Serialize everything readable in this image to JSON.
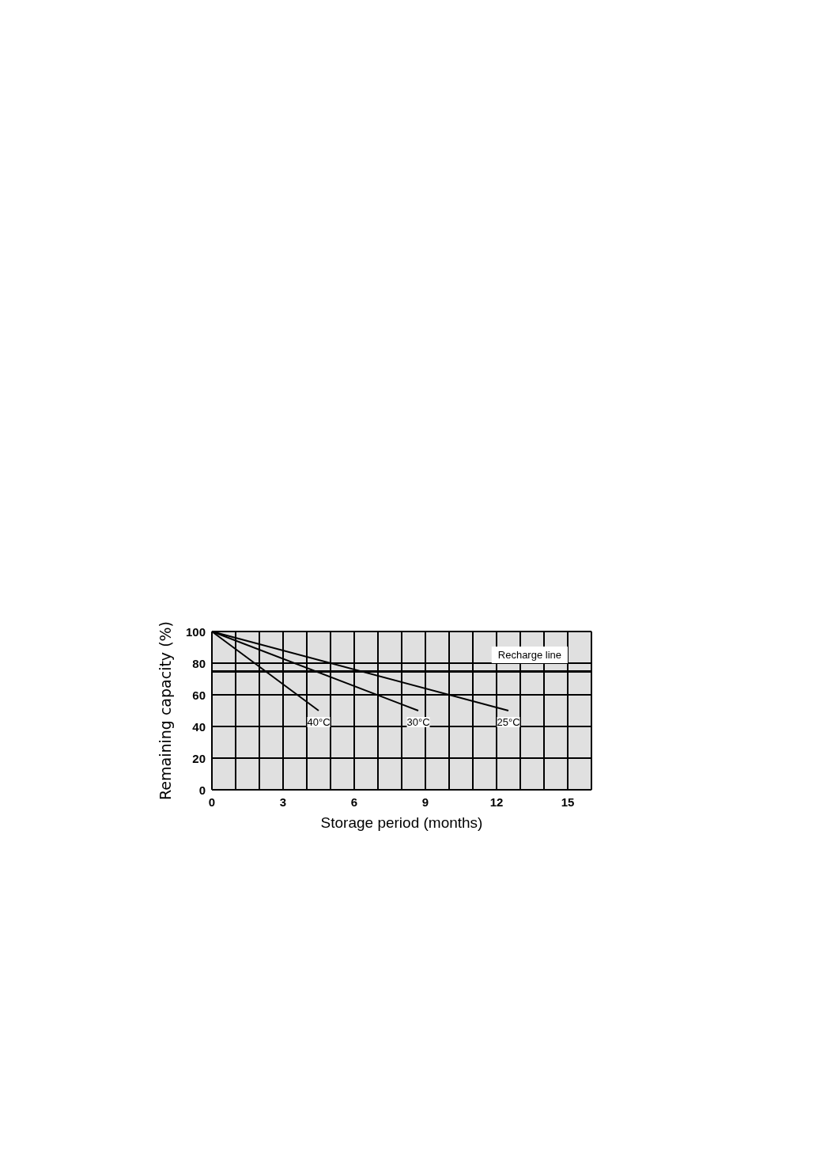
{
  "chart_data": {
    "type": "line",
    "xlabel": "Storage period (months)",
    "ylabel": "Remaining capacity (%)",
    "series": [
      {
        "name": "40°C",
        "color": "#000000",
        "x": [
          0,
          4.5
        ],
        "values": [
          100,
          50
        ]
      },
      {
        "name": "30°C",
        "color": "#000000",
        "x": [
          0,
          8.7
        ],
        "values": [
          100,
          50
        ]
      },
      {
        "name": "25°C",
        "color": "#000000",
        "x": [
          0,
          12.5
        ],
        "values": [
          100,
          50
        ]
      }
    ],
    "xlim": [
      0,
      16
    ],
    "xticks": [
      0,
      {
        "value": 1,
        "label": null
      },
      {
        "value": 2,
        "label": null
      },
      3,
      {
        "value": 4,
        "label": null
      },
      {
        "value": 5,
        "label": null
      },
      6,
      {
        "value": 7,
        "label": null
      },
      {
        "value": 8,
        "label": null
      },
      9,
      {
        "value": 10,
        "label": null
      },
      {
        "value": 11,
        "label": null
      },
      12,
      {
        "value": 13,
        "label": null
      },
      {
        "value": 14,
        "label": null
      },
      15,
      {
        "value": 16,
        "label": null
      }
    ],
    "ylim": [
      0,
      100
    ],
    "yticks": [
      0,
      20,
      40,
      60,
      80,
      100
    ],
    "ref_lines": [
      {
        "axis": "y",
        "value": 75,
        "label": "Recharge line",
        "color": "#000000"
      }
    ],
    "grid": true,
    "legend": false,
    "marker": "none",
    "line_style": "solid"
  }
}
